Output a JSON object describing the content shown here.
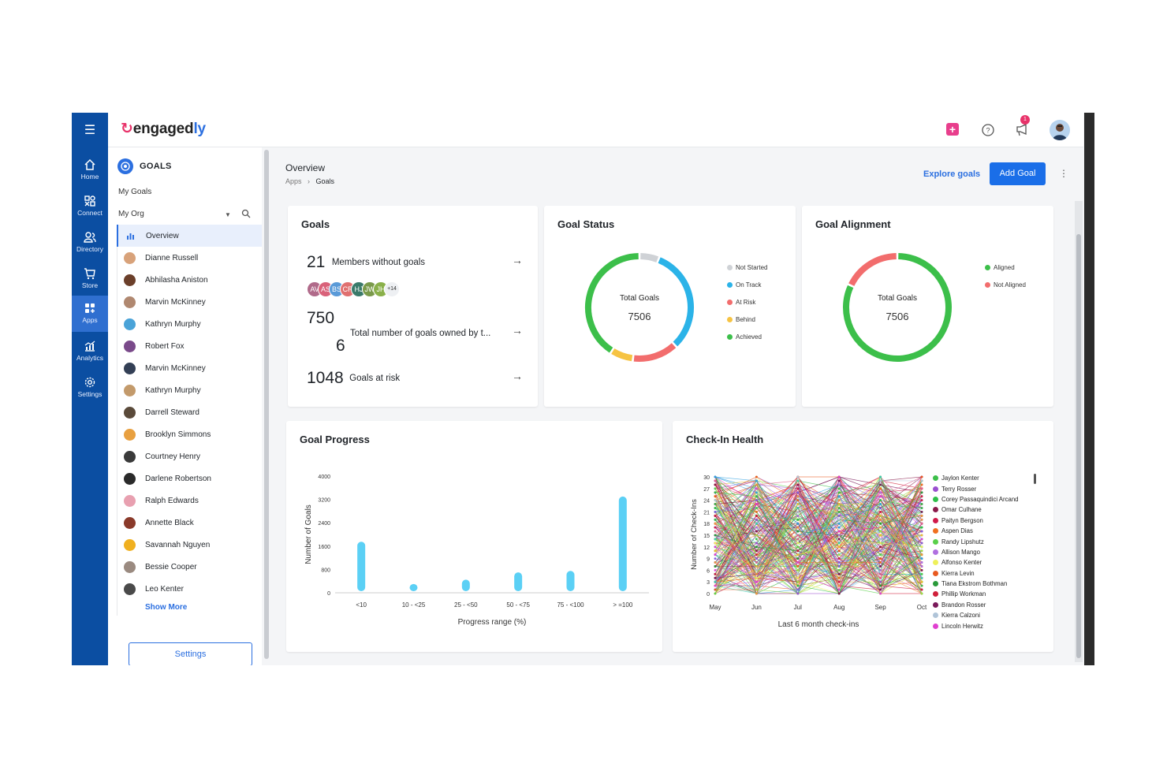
{
  "nav": {
    "items": [
      {
        "label": "Home",
        "icon": "home-icon"
      },
      {
        "label": "Connect",
        "icon": "connect-icon"
      },
      {
        "label": "Directory",
        "icon": "directory-icon"
      },
      {
        "label": "Store",
        "icon": "store-icon"
      },
      {
        "label": "Apps",
        "icon": "apps-icon"
      },
      {
        "label": "Analytics",
        "icon": "analytics-icon"
      },
      {
        "label": "Settings",
        "icon": "settings-icon"
      }
    ]
  },
  "header": {
    "logo_prefix": "engaged",
    "logo_suffix": "ly",
    "notification_count": "1"
  },
  "sidebar": {
    "title": "GOALS",
    "my_goals": "My Goals",
    "my_org": "My Org",
    "items": [
      {
        "label": "Overview",
        "color": "#2b6fe0"
      },
      {
        "label": "Dianne Russell",
        "color": "#d8a27a"
      },
      {
        "label": "Abhilasha Aniston",
        "color": "#6b3f2a"
      },
      {
        "label": "Marvin McKinney",
        "color": "#b08870"
      },
      {
        "label": "Kathryn Murphy",
        "color": "#4aa3d8"
      },
      {
        "label": "Robert Fox",
        "color": "#7a4a8a"
      },
      {
        "label": "Marvin McKinney",
        "color": "#333f55"
      },
      {
        "label": "Kathryn Murphy",
        "color": "#c39a6b"
      },
      {
        "label": "Darrell Steward",
        "color": "#5a4a3a"
      },
      {
        "label": "Brooklyn Simmons",
        "color": "#e8a040"
      },
      {
        "label": "Courtney Henry",
        "color": "#3a3a3a"
      },
      {
        "label": "Darlene Robertson",
        "color": "#2a2a2a"
      },
      {
        "label": "Ralph Edwards",
        "color": "#e8a0b0"
      },
      {
        "label": "Annette Black",
        "color": "#8a3a2a"
      },
      {
        "label": "Savannah Nguyen",
        "color": "#f0b020"
      },
      {
        "label": "Bessie Cooper",
        "color": "#9a8a80"
      },
      {
        "label": "Leo Kenter",
        "color": "#4a4a4a"
      }
    ],
    "show_more": "Show More",
    "settings": "Settings"
  },
  "main": {
    "title": "Overview",
    "breadcrumb": [
      "Apps",
      "Goals"
    ],
    "explore": "Explore goals",
    "add_goal": "Add Goal"
  },
  "goals_card": {
    "title": "Goals",
    "members_count": "21",
    "members_label": "Members without goals",
    "avatars": [
      {
        "initials": "AV",
        "color": "#b06a8a"
      },
      {
        "initials": "AS",
        "color": "#d9627a"
      },
      {
        "initials": "BS",
        "color": "#5a9ad8"
      },
      {
        "initials": "CR",
        "color": "#e07070"
      },
      {
        "initials": "HJ",
        "color": "#3a7a6a"
      },
      {
        "initials": "JW",
        "color": "#7a9a4a"
      },
      {
        "initials": "JH",
        "color": "#8ab04a"
      }
    ],
    "avatars_more": "+14",
    "total_owned_num_1": "750",
    "total_owned_num_2": "6",
    "total_owned_label": "Total number of goals owned by t...",
    "at_risk_count": "1048",
    "at_risk_label": "Goals at risk"
  },
  "goal_status": {
    "title": "Goal Status",
    "center_label": "Total Goals",
    "center_value": "7506",
    "legend": [
      {
        "label": "Not Started",
        "color": "#cfd2d6",
        "share": 0.06
      },
      {
        "label": "On Track",
        "color": "#2bb3e8",
        "share": 0.32
      },
      {
        "label": "At Risk",
        "color": "#f26d6d",
        "share": 0.14
      },
      {
        "label": "Behind",
        "color": "#f6c343",
        "share": 0.07
      },
      {
        "label": "Achieved",
        "color": "#3cbf4a",
        "share": 0.41
      }
    ]
  },
  "goal_alignment": {
    "title": "Goal Alignment",
    "center_label": "Total Goals",
    "center_value": "7506",
    "legend": [
      {
        "label": "Aligned",
        "color": "#3cbf4a",
        "share": 0.82
      },
      {
        "label": "Not Aligned",
        "color": "#f26d6d",
        "share": 0.18
      }
    ]
  },
  "goal_progress": {
    "title": "Goal Progress",
    "chart_data": {
      "type": "bar",
      "categories": [
        "<10",
        "10 - <25",
        "25 - <50",
        "50 - <75",
        "75 - <100",
        "> =100"
      ],
      "values": [
        1750,
        300,
        450,
        700,
        750,
        3300
      ],
      "xlabel": "Progress range (%)",
      "ylabel": "Number of Goals",
      "ylim": [
        0,
        4000
      ],
      "yticks": [
        0,
        800,
        1600,
        2400,
        3200,
        4000
      ],
      "color": "#5bd0f5"
    }
  },
  "checkin_health": {
    "title": "Check-In Health",
    "chart_data": {
      "type": "line",
      "x": [
        "May",
        "Jun",
        "Jul",
        "Aug",
        "Sep",
        "Oct"
      ],
      "xlabel": "Last 6 month check-ins",
      "ylabel": "Number of Check-Ins",
      "ylim": [
        0,
        30
      ],
      "yticks": [
        0,
        3,
        6,
        9,
        12,
        15,
        18,
        21,
        24,
        27,
        30
      ],
      "series": [
        {
          "name": "Jaylon Kenter",
          "color": "#3cbf4a"
        },
        {
          "name": "Terry Rosser",
          "color": "#9b4fd0"
        },
        {
          "name": "Corey Passaquindici Arcand",
          "color": "#2fbf4a"
        },
        {
          "name": "Omar Culhane",
          "color": "#8a1a4a"
        },
        {
          "name": "Paityn Bergson",
          "color": "#d01a4a"
        },
        {
          "name": "Aspen Dias",
          "color": "#f07020"
        },
        {
          "name": "Randy Lipshutz",
          "color": "#5ad04a"
        },
        {
          "name": "Allison Mango",
          "color": "#b070e0"
        },
        {
          "name": "Alfonso Kenter",
          "color": "#eef05a"
        },
        {
          "name": "Kierra Levin",
          "color": "#e85a20"
        },
        {
          "name": "Tiana Ekstrom Bothman",
          "color": "#2a9a3a"
        },
        {
          "name": "Phillip Workman",
          "color": "#d0203a"
        },
        {
          "name": "Brandon Rosser",
          "color": "#7a1a5a"
        },
        {
          "name": "Kierra Calzoni",
          "color": "#b0c4d8"
        },
        {
          "name": "Lincoln Herwitz",
          "color": "#e040d0"
        }
      ]
    }
  }
}
